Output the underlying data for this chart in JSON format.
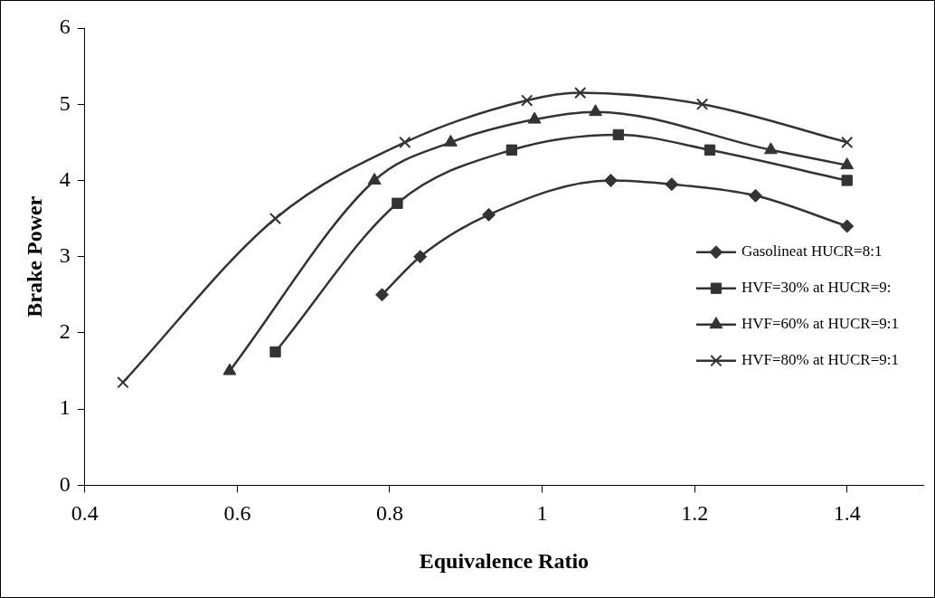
{
  "chart_data": {
    "type": "line",
    "xlabel": "Equivalence Ratio",
    "ylabel": "Brake Power",
    "xlim": [
      0.4,
      1.5
    ],
    "xticks": [
      0.4,
      0.6,
      0.8,
      1,
      1.2,
      1.4
    ],
    "ylim": [
      0,
      6
    ],
    "yticks": [
      0,
      1,
      2,
      3,
      4,
      5,
      6
    ],
    "grid": false,
    "legend": "right",
    "line_style": "solid",
    "series": [
      {
        "name": "Gasolineat HUCR=8:1",
        "color": "#333333",
        "marker": "diamond",
        "x": [
          0.79,
          0.84,
          0.93,
          1.09,
          1.17,
          1.28,
          1.4
        ],
        "values": [
          2.5,
          3.0,
          3.55,
          4.0,
          3.95,
          3.8,
          3.4
        ]
      },
      {
        "name": "HVF=30% at HUCR=9:",
        "color": "#333333",
        "marker": "square",
        "x": [
          0.65,
          0.81,
          0.96,
          1.1,
          1.22,
          1.4
        ],
        "values": [
          1.75,
          3.7,
          4.4,
          4.6,
          4.4,
          4.0
        ]
      },
      {
        "name": "HVF=60% at HUCR=9:1",
        "color": "#333333",
        "marker": "triangle",
        "x": [
          0.59,
          0.78,
          0.88,
          0.99,
          1.07,
          1.3,
          1.4
        ],
        "values": [
          1.5,
          4.0,
          4.5,
          4.8,
          4.9,
          4.4,
          4.2
        ]
      },
      {
        "name": "HVF=80% at HUCR=9:1",
        "color": "#333333",
        "marker": "cross",
        "x": [
          0.45,
          0.65,
          0.82,
          0.98,
          1.05,
          1.21,
          1.4
        ],
        "values": [
          1.35,
          3.5,
          4.5,
          5.05,
          5.15,
          5.0,
          4.5
        ]
      }
    ]
  }
}
